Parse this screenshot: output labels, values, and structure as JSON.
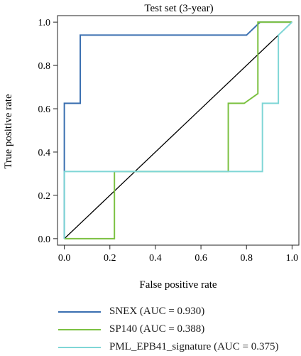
{
  "chart_data": {
    "type": "line",
    "title": "Test set (3-year)",
    "xlabel": "False positive rate",
    "ylabel": "True positive rate",
    "xlim": [
      -0.03,
      1.03
    ],
    "ylim": [
      -0.03,
      1.03
    ],
    "xticks": [
      "0.0",
      "0.2",
      "0.4",
      "0.6",
      "0.8",
      "1.0"
    ],
    "yticks": [
      "0.0",
      "0.2",
      "0.4",
      "0.6",
      "0.8",
      "1.0"
    ],
    "grid": false,
    "legend_position": "bottom",
    "series": [
      {
        "name": "SNEX (AUC = 0.930)",
        "color": "#3a6fb0",
        "x": [
          0.0,
          0.0,
          0.07,
          0.07,
          0.8,
          0.86,
          1.0
        ],
        "y": [
          0.0,
          0.625,
          0.625,
          0.94,
          0.94,
          1.0,
          1.0
        ]
      },
      {
        "name": "SP140 (AUC = 0.388)",
        "color": "#7cc142",
        "x": [
          0.0,
          0.22,
          0.22,
          0.72,
          0.72,
          0.79,
          0.85,
          0.85,
          0.86,
          1.0
        ],
        "y": [
          0.0,
          0.0,
          0.31,
          0.31,
          0.625,
          0.625,
          0.67,
          1.0,
          1.0,
          1.0
        ]
      },
      {
        "name": "PML_EPB41_signature (AUC = 0.375)",
        "color": "#7fd6d6",
        "x": [
          0.0,
          0.0,
          0.87,
          0.87,
          0.94,
          0.94,
          1.0
        ],
        "y": [
          0.0,
          0.31,
          0.31,
          0.625,
          0.625,
          0.94,
          1.0
        ]
      }
    ],
    "reference_line": {
      "x": [
        0,
        1
      ],
      "y": [
        0,
        1
      ],
      "color": "#000000"
    }
  }
}
